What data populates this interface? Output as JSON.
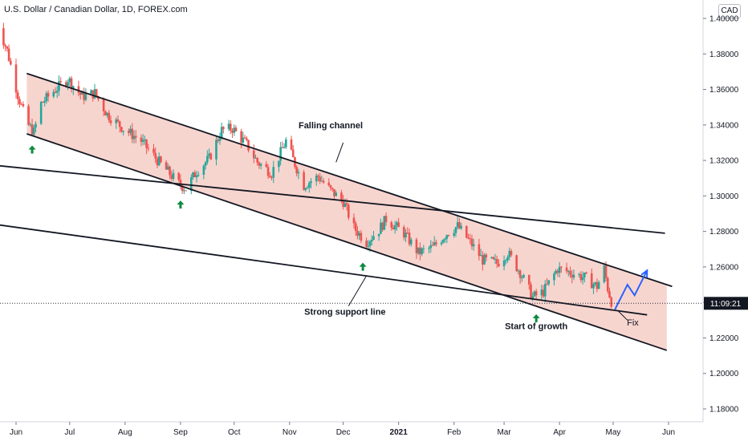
{
  "header": {
    "title": "U.S. Dollar / Canadian Dollar, 1D, FOREX.com",
    "currency": "CAD"
  },
  "current_time": "11:09:21",
  "colors": {
    "bull": "#26a69a",
    "bear": "#ef5350",
    "wick": "#131722",
    "channel_fill": "#f4c7bf",
    "arrow_green": "#0b8a3e",
    "forecast": "#2962ff",
    "price_tag": "#131722",
    "current_line": "#2a2e39"
  },
  "chart_data": {
    "type": "candlestick",
    "title": "U.S. Dollar / Canadian Dollar, 1D, FOREX.com",
    "x_ticks": [
      "Jun",
      "Jul",
      "Aug",
      "Sep",
      "Oct",
      "Nov",
      "Dec",
      "2021",
      "Feb",
      "Mar",
      "Apr",
      "May",
      "Jun"
    ],
    "y_ticks": [
      "1.40000",
      "1.38000",
      "1.36000",
      "1.34000",
      "1.32000",
      "1.30000",
      "1.28000",
      "1.26000",
      "1.24000",
      "1.22000",
      "1.20000",
      "1.18000"
    ],
    "ylim": [
      1.176,
      1.404
    ],
    "price_path": [
      {
        "d": "2020-05-21",
        "p": 1.399
      },
      {
        "d": "2020-05-27",
        "p": 1.382
      },
      {
        "d": "2020-06-02",
        "p": 1.357
      },
      {
        "d": "2020-06-07",
        "p": 1.341
      },
      {
        "d": "2020-06-11",
        "p": 1.336
      },
      {
        "d": "2020-06-15",
        "p": 1.352
      },
      {
        "d": "2020-06-22",
        "p": 1.359
      },
      {
        "d": "2020-06-30",
        "p": 1.366
      },
      {
        "d": "2020-07-08",
        "p": 1.356
      },
      {
        "d": "2020-07-15",
        "p": 1.358
      },
      {
        "d": "2020-07-22",
        "p": 1.346
      },
      {
        "d": "2020-07-31",
        "p": 1.338
      },
      {
        "d": "2020-08-10",
        "p": 1.331
      },
      {
        "d": "2020-08-20",
        "p": 1.319
      },
      {
        "d": "2020-08-31",
        "p": 1.307
      },
      {
        "d": "2020-09-04",
        "p": 1.304
      },
      {
        "d": "2020-09-10",
        "p": 1.314
      },
      {
        "d": "2020-09-17",
        "p": 1.321
      },
      {
        "d": "2020-09-24",
        "p": 1.337
      },
      {
        "d": "2020-09-30",
        "p": 1.338
      },
      {
        "d": "2020-10-08",
        "p": 1.329
      },
      {
        "d": "2020-10-14",
        "p": 1.319
      },
      {
        "d": "2020-10-22",
        "p": 1.313
      },
      {
        "d": "2020-10-30",
        "p": 1.331
      },
      {
        "d": "2020-11-04",
        "p": 1.318
      },
      {
        "d": "2020-11-09",
        "p": 1.306
      },
      {
        "d": "2020-11-17",
        "p": 1.311
      },
      {
        "d": "2020-11-24",
        "p": 1.303
      },
      {
        "d": "2020-12-01",
        "p": 1.297
      },
      {
        "d": "2020-12-07",
        "p": 1.282
      },
      {
        "d": "2020-12-14",
        "p": 1.274
      },
      {
        "d": "2020-12-21",
        "p": 1.281
      },
      {
        "d": "2020-12-25",
        "p": 1.287
      },
      {
        "d": "2021-01-04",
        "p": 1.279
      },
      {
        "d": "2021-01-12",
        "p": 1.268
      },
      {
        "d": "2021-01-20",
        "p": 1.271
      },
      {
        "d": "2021-01-28",
        "p": 1.279
      },
      {
        "d": "2021-02-03",
        "p": 1.283
      },
      {
        "d": "2021-02-10",
        "p": 1.274
      },
      {
        "d": "2021-02-17",
        "p": 1.264
      },
      {
        "d": "2021-02-25",
        "p": 1.262
      },
      {
        "d": "2021-03-03",
        "p": 1.268
      },
      {
        "d": "2021-03-10",
        "p": 1.257
      },
      {
        "d": "2021-03-17",
        "p": 1.243
      },
      {
        "d": "2021-03-23",
        "p": 1.246
      },
      {
        "d": "2021-03-31",
        "p": 1.259
      },
      {
        "d": "2021-04-07",
        "p": 1.257
      },
      {
        "d": "2021-04-15",
        "p": 1.254
      },
      {
        "d": "2021-04-22",
        "p": 1.249
      },
      {
        "d": "2021-04-26",
        "p": 1.259
      },
      {
        "d": "2021-04-28",
        "p": 1.248
      },
      {
        "d": "2021-05-01",
        "p": 1.237
      }
    ],
    "trendlines": [
      {
        "name": "channel-top",
        "p1": {
          "d": "2020-06-07",
          "p": 1.369
        },
        "p2": {
          "d": "2021-06-03",
          "p": 1.249
        }
      },
      {
        "name": "channel-bottom",
        "p1": {
          "d": "2020-06-07",
          "p": 1.335
        },
        "p2": {
          "d": "2021-05-31",
          "p": 1.213
        }
      },
      {
        "name": "support-upper",
        "p1": {
          "d": "2020-05-13",
          "p": 1.318
        },
        "p2": {
          "d": "2021-05-30",
          "p": 1.279
        }
      },
      {
        "name": "support-lower",
        "p1": {
          "d": "2020-05-13",
          "p": 1.285
        },
        "p2": {
          "d": "2021-05-20",
          "p": 1.233
        }
      }
    ],
    "forecast_path": [
      {
        "d": "2021-05-02",
        "p": 1.236
      },
      {
        "d": "2021-05-09",
        "p": 1.25
      },
      {
        "d": "2021-05-13",
        "p": 1.244
      },
      {
        "d": "2021-05-20",
        "p": 1.258
      }
    ],
    "support_arrows": [
      {
        "d": "2020-06-10",
        "p": 1.332
      },
      {
        "d": "2020-09-01",
        "p": 1.301
      },
      {
        "d": "2020-12-12",
        "p": 1.266
      },
      {
        "d": "2021-03-19",
        "p": 1.237
      }
    ],
    "current_price_line": 1.2395,
    "annotations": [
      {
        "text": "Falling channel",
        "d": "2020-11-24",
        "p": 1.338,
        "bold": true
      },
      {
        "text": "Strong support line",
        "d": "2020-12-02",
        "p": 1.233,
        "bold": true
      },
      {
        "text": "Start of growth",
        "d": "2021-03-19",
        "p": 1.225,
        "bold": true
      },
      {
        "text": "Fix",
        "d": "2021-05-12",
        "p": 1.227,
        "bold": false
      }
    ]
  }
}
